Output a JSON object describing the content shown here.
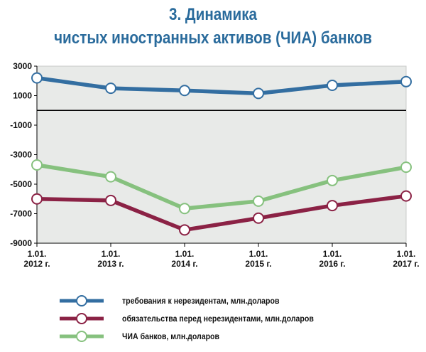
{
  "title": {
    "line1": "3. Динамика",
    "line2": "чистых иностранных активов (ЧИА) банков"
  },
  "colors": {
    "title": "#2a6b9c",
    "plot_bg": "#e8eae8",
    "axis": "#000000"
  },
  "chart_data": {
    "type": "line",
    "x": [
      "1.01.\n2012 г.",
      "1.01.\n2013 г.",
      "1.01.\n2014 г.",
      "1.01.\n2015 г.",
      "1.01.\n2016 г.",
      "1.01.\n2017 г."
    ],
    "ylim": [
      -9000,
      3000
    ],
    "yticks": [
      3000,
      1000,
      -1000,
      -3000,
      -5000,
      -7000,
      -9000
    ],
    "grid": false,
    "legend_position": "bottom",
    "series": [
      {
        "name": "требования к нерезидентам, млн.доларов",
        "color": "#336ea1",
        "values": [
          2200,
          1500,
          1350,
          1150,
          1700,
          1950
        ]
      },
      {
        "name": "обязательства перед нерезидентами, млн.доларов",
        "color": "#8b2245",
        "values": [
          -6000,
          -6100,
          -8100,
          -7300,
          -6450,
          -5800
        ]
      },
      {
        "name": "ЧИА банков, млн.доларов",
        "color": "#86c17e",
        "values": [
          -3700,
          -4500,
          -6650,
          -6150,
          -4750,
          -3850
        ]
      }
    ]
  }
}
